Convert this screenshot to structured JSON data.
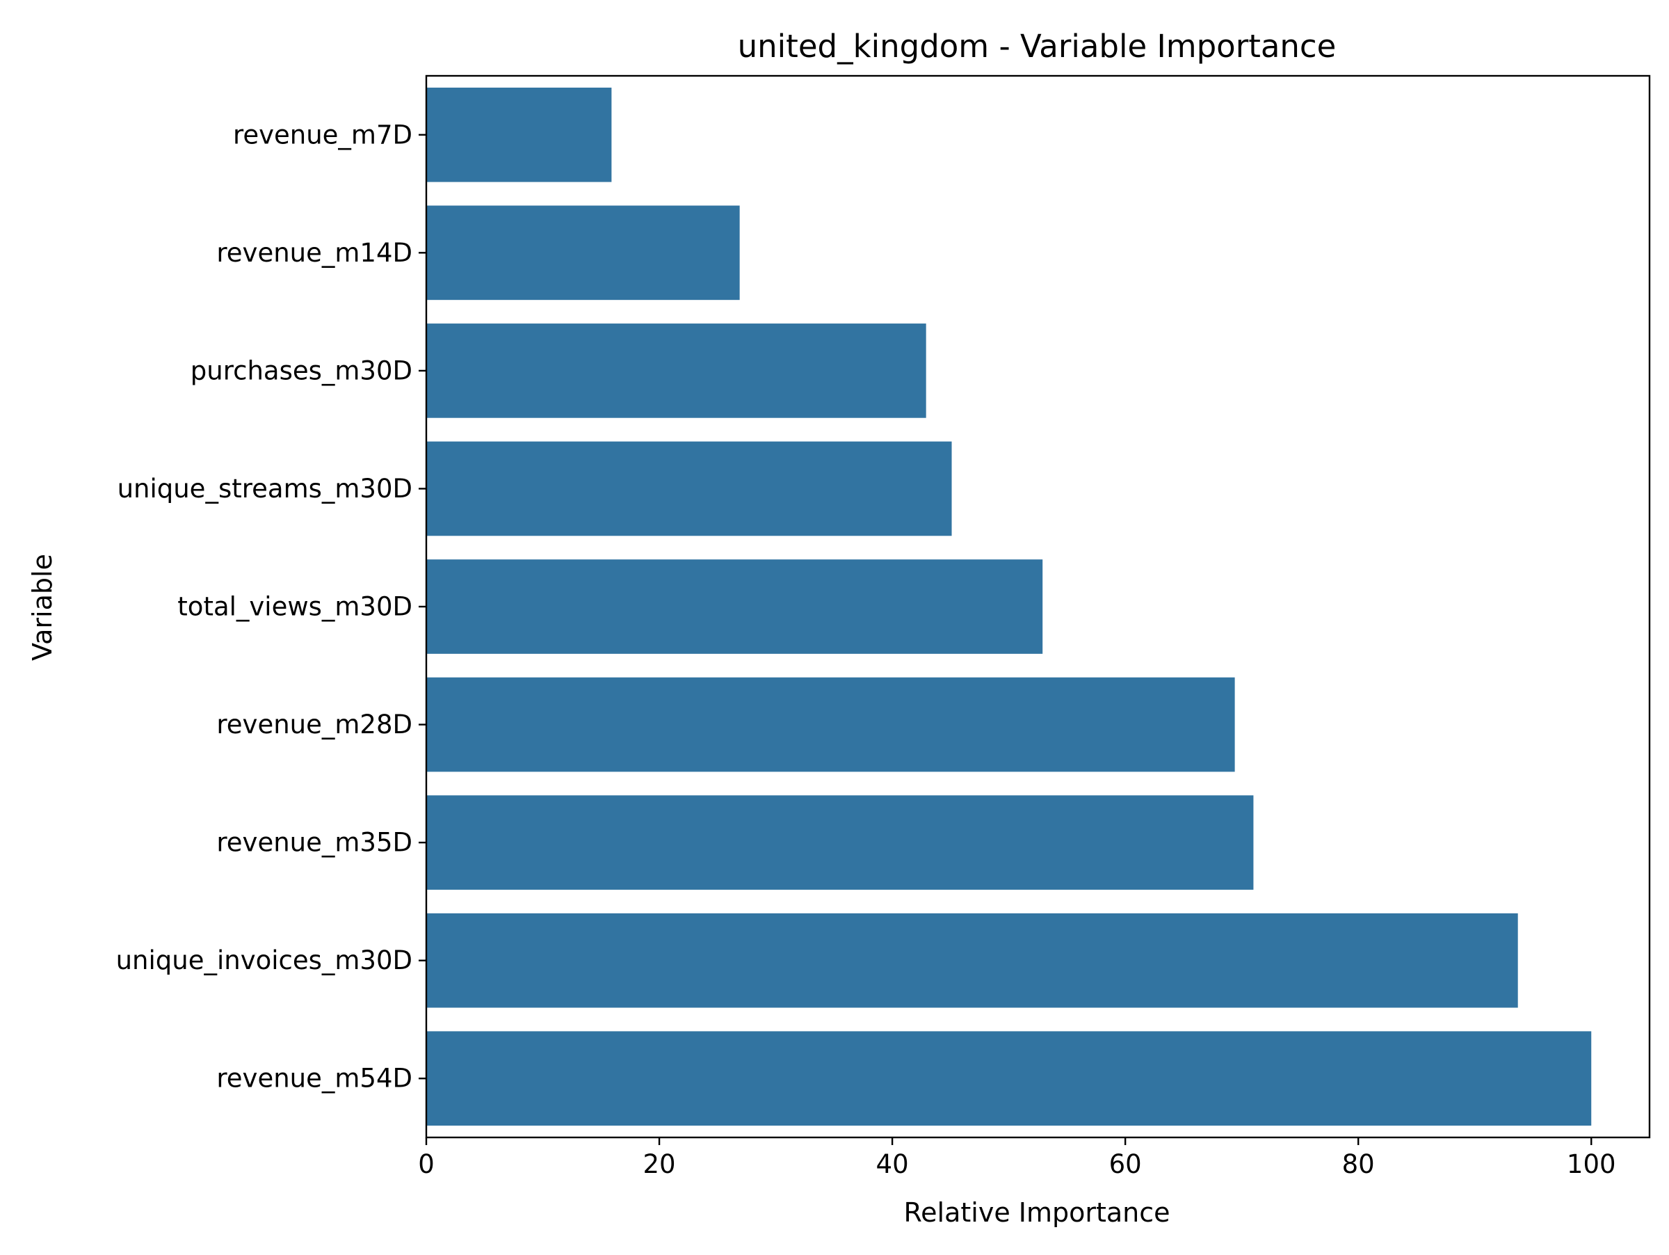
{
  "chart_data": {
    "type": "bar",
    "orientation": "horizontal",
    "title": "united_kingdom - Variable Importance",
    "xlabel": "Relative Importance",
    "ylabel": "Variable",
    "categories": [
      "revenue_m7D",
      "revenue_m14D",
      "purchases_m30D",
      "unique_streams_m30D",
      "total_views_m30D",
      "revenue_m28D",
      "revenue_m35D",
      "unique_invoices_m30D",
      "revenue_m54D"
    ],
    "values": [
      15.9,
      26.9,
      42.9,
      45.1,
      52.9,
      69.4,
      71.0,
      93.7,
      100.0
    ],
    "xlim": [
      0,
      105
    ],
    "xticks": [
      0,
      20,
      40,
      60,
      80,
      100
    ],
    "grid": false,
    "legend": "none",
    "bar_color": "#3274a1"
  }
}
